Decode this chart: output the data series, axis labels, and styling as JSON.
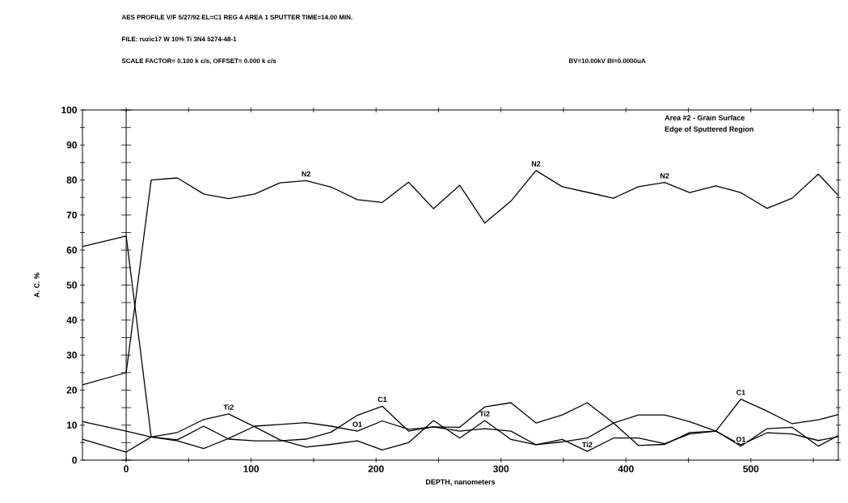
{
  "chart_data": {
    "type": "line",
    "title": "AES PROFILE V/F   5/27/92  EL=C1  REG 4 AREA 1  SPUTTER TIME=14.00 MIN.",
    "subtitle": "FILE: ruzic17  W 10% Ti  3N4  5274-48-1",
    "xlabel": "DEPTH, nanometers",
    "ylabel": "A. C. %",
    "x": [
      -35,
      0,
      20,
      41,
      62,
      82,
      103,
      123,
      144,
      164,
      185,
      205,
      226,
      246,
      267,
      287,
      308,
      328,
      349,
      369,
      390,
      410,
      431,
      451,
      472,
      492,
      513,
      533,
      554,
      570
    ],
    "series": [
      {
        "name": "N2",
        "color": "#000000",
        "values": [
          21.5,
          25,
          80,
          80.6,
          76,
          74.7,
          76,
          79.2,
          79.8,
          78,
          74.4,
          73.6,
          79.4,
          71.8,
          78.5,
          67.7,
          74,
          82.7,
          78.1,
          76.5,
          74.8,
          78.1,
          79.3,
          76.4,
          78.3,
          76.4,
          71.9,
          74.8,
          81.7,
          75.6
        ]
      },
      {
        "name": "Ti2",
        "color": "#000000",
        "values": [
          11,
          8.3,
          6.6,
          7.9,
          11.6,
          13.2,
          9.5,
          5.8,
          3.7,
          4.5,
          5.5,
          2.9,
          5.0,
          11.3,
          6.3,
          11.3,
          5.9,
          4.4,
          5.9,
          2.5,
          6.3,
          6.3,
          4.7,
          7.5,
          8.3,
          4.4,
          7.8,
          7.5,
          5.6,
          6.7
        ]
      },
      {
        "name": "O1",
        "color": "#000000",
        "values": [
          6,
          2.3,
          6.6,
          5.5,
          3.3,
          6.2,
          9.7,
          10.2,
          10.7,
          9.7,
          8.3,
          11.2,
          8.8,
          9.5,
          8.3,
          9.0,
          8.3,
          4.4,
          5.2,
          6.3,
          10.6,
          12.9,
          12.9,
          11,
          8.3,
          4.0,
          9.0,
          9.4,
          4.0,
          7
        ]
      },
      {
        "name": "C1",
        "color": "#000000",
        "values": [
          61,
          64,
          6.6,
          5.8,
          9.7,
          6.0,
          5.5,
          5.5,
          6.0,
          8.0,
          12.8,
          15.4,
          8.3,
          9.5,
          9.4,
          15.2,
          16.4,
          10.6,
          12.9,
          16.4,
          10.6,
          4.2,
          4.5,
          7.9,
          8.3,
          17.4,
          14,
          10.4,
          11.5,
          13
        ]
      }
    ],
    "xlim": [
      -35,
      570
    ],
    "ylim": [
      0,
      100
    ],
    "xticks": [
      0,
      {
        "value": 50,
        "label": null
      },
      100,
      {
        "value": 150,
        "label": null
      },
      200,
      {
        "value": 250,
        "label": null
      },
      300,
      {
        "value": 350,
        "label": null
      },
      400,
      {
        "value": 450,
        "label": null
      },
      500,
      {
        "value": 550,
        "label": null
      }
    ],
    "yticks": [
      0,
      {
        "value": 5,
        "label": null
      },
      10,
      {
        "value": 15,
        "label": null
      },
      20,
      {
        "value": 25,
        "label": null
      },
      30,
      {
        "value": 35,
        "label": null
      },
      40,
      {
        "value": 45,
        "label": null
      },
      50,
      {
        "value": 55,
        "label": null
      },
      60,
      {
        "value": 65,
        "label": null
      },
      70,
      {
        "value": 75,
        "label": null
      },
      80,
      {
        "value": 85,
        "label": null
      },
      90,
      {
        "value": 95,
        "label": null
      },
      100
    ],
    "ref_lines": [
      {
        "axis": "x",
        "value": 0
      }
    ],
    "marker": "none",
    "line_style": "solid",
    "grid": false,
    "legend": false,
    "annotations": [
      "SCALE FACTOR=  0.100 k c/s,  OFFSET=  0.000 k c/s",
      "BV=10.00kV BI=0.0000uA",
      "Area #2 - Grain Surface",
      "Edge of Sputtered Region"
    ]
  }
}
